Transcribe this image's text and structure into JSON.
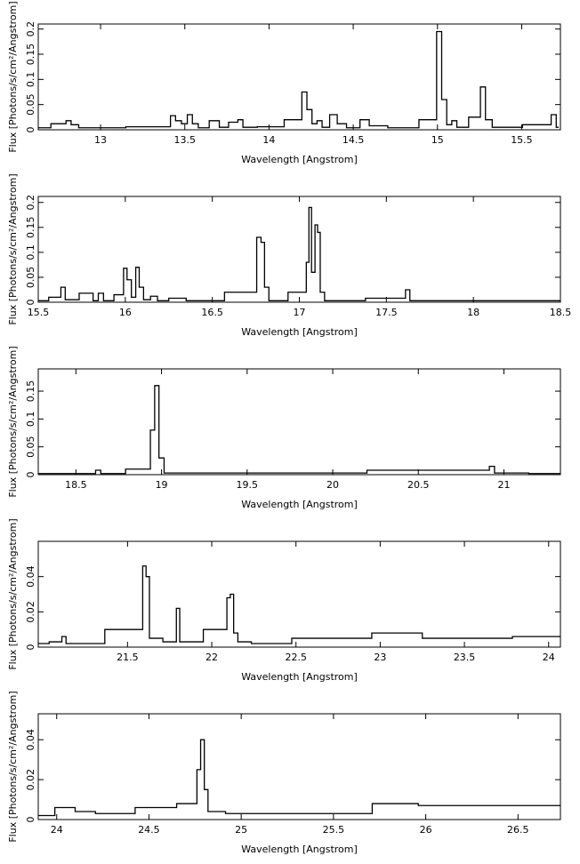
{
  "chart_data": [
    {
      "type": "line",
      "drawstyle": "steps",
      "color": "#000000",
      "xlabel": "Wavelength [Angstrom]",
      "ylabel": "Flux [Photons/s/cm²/Angstrom]",
      "xlim": [
        12.63,
        15.73
      ],
      "xticks": [
        13,
        13.5,
        14,
        14.5,
        15,
        15.5
      ],
      "ylim": [
        0,
        0.21
      ],
      "yticks": [
        0,
        0.05,
        0.1,
        0.15,
        0.2
      ],
      "x": [
        12.63,
        12.78,
        12.81,
        12.84,
        12.9,
        13.4,
        13.43,
        13.46,
        13.5,
        13.53,
        13.56,
        13.6,
        13.69,
        13.72,
        13.8,
        13.83,
        13.86,
        14.0,
        14.18,
        14.21,
        14.24,
        14.27,
        14.3,
        14.33,
        14.39,
        14.42,
        14.5,
        14.58,
        14.61,
        14.8,
        14.98,
        15.01,
        15.04,
        15.07,
        15.1,
        15.13,
        15.24,
        15.27,
        15.3,
        15.35,
        15.66,
        15.69,
        15.72
      ],
      "values": [
        0.004,
        0.012,
        0.018,
        0.01,
        0.004,
        0.006,
        0.028,
        0.018,
        0.012,
        0.03,
        0.012,
        0.004,
        0.018,
        0.005,
        0.015,
        0.02,
        0.005,
        0.006,
        0.02,
        0.075,
        0.04,
        0.012,
        0.018,
        0.005,
        0.03,
        0.012,
        0.004,
        0.02,
        0.008,
        0.004,
        0.02,
        0.195,
        0.06,
        0.01,
        0.018,
        0.005,
        0.025,
        0.085,
        0.02,
        0.005,
        0.01,
        0.03,
        0.005
      ]
    },
    {
      "type": "line",
      "drawstyle": "steps",
      "color": "#000000",
      "xlabel": "Wavelength [Angstrom]",
      "ylabel": "Flux [Photons/s/cm²/Angstrom]",
      "xlim": [
        15.5,
        18.5
      ],
      "xticks": [
        15.5,
        16,
        16.5,
        17,
        17.5,
        18,
        18.5
      ],
      "ylim": [
        0,
        0.212
      ],
      "yticks": [
        0,
        0.05,
        0.1,
        0.15,
        0.2
      ],
      "x": [
        15.5,
        15.62,
        15.64,
        15.67,
        15.8,
        15.83,
        15.86,
        15.89,
        15.98,
        16.0,
        16.02,
        16.05,
        16.07,
        16.09,
        16.12,
        16.17,
        16.2,
        16.3,
        16.4,
        16.74,
        16.77,
        16.79,
        16.81,
        16.84,
        17.03,
        17.05,
        17.06,
        17.08,
        17.1,
        17.11,
        17.13,
        17.16,
        17.6,
        17.62,
        17.65,
        18.5
      ],
      "values": [
        0.003,
        0.01,
        0.03,
        0.005,
        0.018,
        0.003,
        0.018,
        0.003,
        0.015,
        0.068,
        0.045,
        0.01,
        0.07,
        0.03,
        0.005,
        0.012,
        0.003,
        0.008,
        0.003,
        0.02,
        0.13,
        0.12,
        0.03,
        0.003,
        0.02,
        0.08,
        0.19,
        0.06,
        0.155,
        0.14,
        0.02,
        0.003,
        0.008,
        0.025,
        0.003,
        0.003
      ]
    },
    {
      "type": "line",
      "drawstyle": "steps",
      "color": "#000000",
      "xlabel": "Wavelength [Angstrom]",
      "ylabel": "Flux [Photons/s/cm²/Angstrom]",
      "xlim": [
        18.28,
        21.33
      ],
      "xticks": [
        18.5,
        19,
        19.5,
        20,
        20.5,
        21
      ],
      "ylim": [
        0,
        0.19
      ],
      "yticks": [
        0,
        0.05,
        0.1,
        0.15
      ],
      "x": [
        18.28,
        18.6,
        18.63,
        18.66,
        18.92,
        18.95,
        18.97,
        19.0,
        19.03,
        19.5,
        20.9,
        20.93,
        20.96,
        21.33
      ],
      "values": [
        0.002,
        0.002,
        0.008,
        0.002,
        0.01,
        0.08,
        0.16,
        0.03,
        0.003,
        0.003,
        0.008,
        0.015,
        0.003,
        0.002
      ]
    },
    {
      "type": "line",
      "drawstyle": "steps",
      "color": "#000000",
      "xlabel": "Wavelength [Angstrom]",
      "ylabel": "Flux [Photons/s/cm²/Angstrom]",
      "xlim": [
        20.97,
        24.07
      ],
      "xticks": [
        21.5,
        22,
        22.5,
        23,
        23.5,
        24
      ],
      "ylim": [
        0,
        0.06
      ],
      "yticks": [
        0,
        0.02,
        0.04
      ],
      "x": [
        20.97,
        21.1,
        21.12,
        21.15,
        21.58,
        21.6,
        21.62,
        21.64,
        21.78,
        21.8,
        21.82,
        22.08,
        22.1,
        22.12,
        22.14,
        22.17,
        22.3,
        22.65,
        22.9,
        23.0,
        23.5,
        24.07
      ],
      "values": [
        0.002,
        0.003,
        0.006,
        0.002,
        0.01,
        0.046,
        0.04,
        0.005,
        0.003,
        0.022,
        0.003,
        0.01,
        0.028,
        0.03,
        0.008,
        0.003,
        0.002,
        0.005,
        0.005,
        0.008,
        0.005,
        0.006
      ]
    },
    {
      "type": "line",
      "drawstyle": "steps",
      "color": "#000000",
      "xlabel": "Wavelength [Angstrom]",
      "ylabel": "Flux [Photons/s/cm²/Angstrom]",
      "xlim": [
        23.9,
        26.73
      ],
      "xticks": [
        24,
        24.5,
        25,
        25.5,
        26,
        26.5
      ],
      "ylim": [
        0,
        0.053
      ],
      "yticks": [
        0,
        0.02,
        0.04
      ],
      "x": [
        23.9,
        24.08,
        24.12,
        24.3,
        24.55,
        24.75,
        24.77,
        24.79,
        24.81,
        24.83,
        25.0,
        25.5,
        25.92,
        26.0,
        26.3,
        26.6,
        26.73
      ],
      "values": [
        0.002,
        0.006,
        0.004,
        0.003,
        0.006,
        0.008,
        0.025,
        0.04,
        0.015,
        0.004,
        0.003,
        0.003,
        0.008,
        0.007,
        0.007,
        0.007,
        0.007
      ]
    }
  ]
}
